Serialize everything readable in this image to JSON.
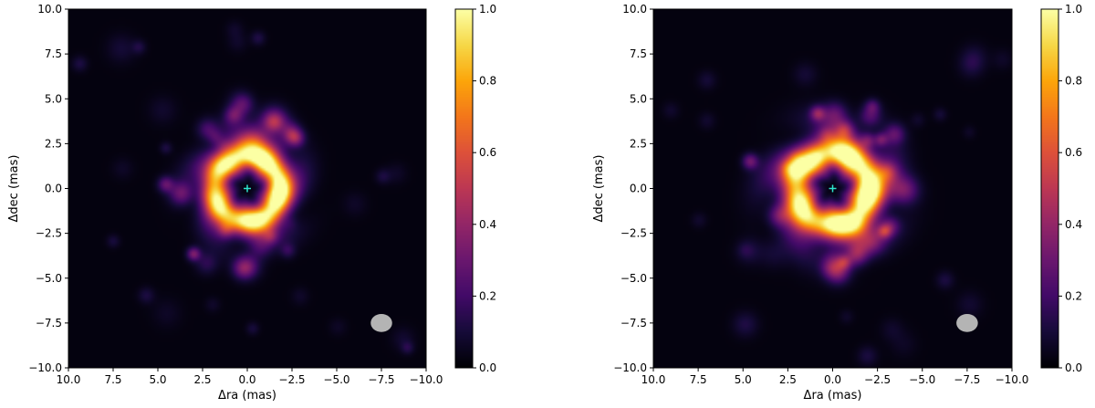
{
  "chart_data": [
    {
      "type": "heatmap",
      "title": "",
      "xlabel": "Δra (mas)",
      "ylabel": "Δdec (mas)",
      "xlim": [
        10.0,
        -10.0
      ],
      "ylim": [
        -10.0,
        10.0
      ],
      "xticks": [
        10.0,
        7.5,
        5.0,
        2.5,
        0.0,
        -2.5,
        -5.0,
        -7.5,
        -10.0
      ],
      "xtick_labels": [
        "10.0",
        "7.5",
        "5.0",
        "2.5",
        "0.0",
        "−2.5",
        "−5.0",
        "−7.5",
        "−10.0"
      ],
      "yticks": [
        10.0,
        7.5,
        5.0,
        2.5,
        0.0,
        -2.5,
        -5.0,
        -7.5,
        -10.0
      ],
      "ytick_labels": [
        "10.0",
        "7.5",
        "5.0",
        "2.5",
        "0.0",
        "−2.5",
        "−5.0",
        "−7.5",
        "−10.0"
      ],
      "colormap": "inferno",
      "clim": [
        0.0,
        1.0
      ],
      "colorbar_ticks": [
        0.0,
        0.2,
        0.4,
        0.6,
        0.8,
        1.0
      ],
      "colorbar_tick_labels": [
        "0.0",
        "0.2",
        "0.4",
        "0.6",
        "0.8",
        "1.0"
      ],
      "ring": {
        "center": [
          0.0,
          0.0
        ],
        "peak_radius": 1.8,
        "width": 0.75,
        "peak": 1.0,
        "brightness_asymmetry": "brighter toward negative Δra"
      },
      "halo": {
        "radius": 3.5,
        "level": 0.3,
        "extent": "clumpy filaments out to ~5 mas"
      },
      "center_marker": {
        "position": [
          0.0,
          0.0
        ],
        "symbol": "+",
        "color": "#2ee6d0"
      },
      "beam": {
        "center": [
          -7.5,
          -7.5
        ],
        "major": 1.2,
        "minor": 1.0,
        "color": "#b4b4b4"
      }
    },
    {
      "type": "heatmap",
      "title": "",
      "xlabel": "Δra (mas)",
      "ylabel": "Δdec (mas)",
      "xlim": [
        10.0,
        -10.0
      ],
      "ylim": [
        -10.0,
        10.0
      ],
      "xticks": [
        10.0,
        7.5,
        5.0,
        2.5,
        0.0,
        -2.5,
        -5.0,
        -7.5,
        -10.0
      ],
      "xtick_labels": [
        "10.0",
        "7.5",
        "5.0",
        "2.5",
        "0.0",
        "−2.5",
        "−5.0",
        "−7.5",
        "−10.0"
      ],
      "yticks": [
        10.0,
        7.5,
        5.0,
        2.5,
        0.0,
        -2.5,
        -5.0,
        -7.5,
        -10.0
      ],
      "ytick_labels": [
        "10.0",
        "7.5",
        "5.0",
        "2.5",
        "0.0",
        "−2.5",
        "−5.0",
        "−7.5",
        "−10.0"
      ],
      "colormap": "inferno",
      "clim": [
        0.0,
        1.0
      ],
      "colorbar_ticks": [
        0.0,
        0.2,
        0.4,
        0.6,
        0.8,
        1.0
      ],
      "colorbar_tick_labels": [
        "0.0",
        "0.2",
        "0.4",
        "0.6",
        "0.8",
        "1.0"
      ],
      "ring": {
        "center": [
          0.0,
          0.0
        ],
        "peak_radius": 2.0,
        "width": 0.85,
        "peak": 1.0,
        "brightness_asymmetry": "brighter toward negative Δra"
      },
      "halo": {
        "radius": 4.0,
        "level": 0.35,
        "extent": "clumpy filaments out to ~6 mas"
      },
      "center_marker": {
        "position": [
          0.0,
          0.0
        ],
        "symbol": "+",
        "color": "#2ee6d0"
      },
      "beam": {
        "center": [
          -7.5,
          -7.5
        ],
        "major": 1.2,
        "minor": 1.0,
        "color": "#b4b4b4"
      }
    }
  ]
}
